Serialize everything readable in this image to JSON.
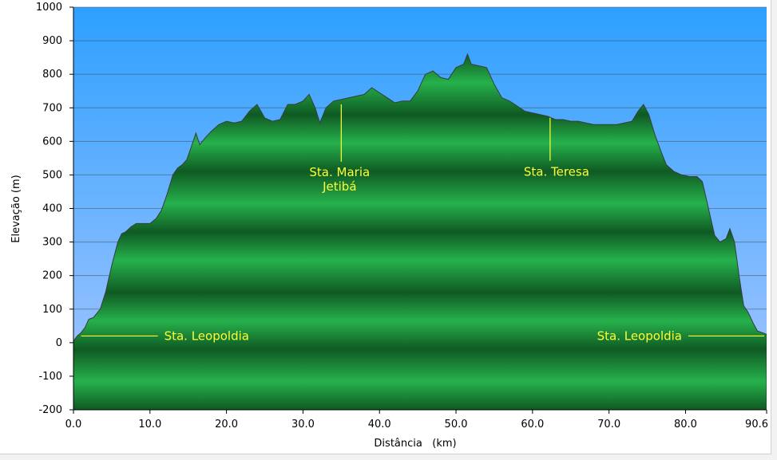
{
  "chart_data": {
    "type": "area",
    "title": "",
    "xlabel": "Distância   (km)",
    "ylabel": "Elevação (m)",
    "xlim": [
      0,
      90.6
    ],
    "ylim": [
      -200,
      1000
    ],
    "x_ticks": [
      "0.0",
      "10.0",
      "20.0",
      "30.0",
      "40.0",
      "50.0",
      "60.0",
      "70.0",
      "80.0",
      "90.6"
    ],
    "x_tick_values": [
      0,
      10,
      20,
      30,
      40,
      50,
      60,
      70,
      80,
      90.6
    ],
    "y_ticks": [
      "1000",
      "900",
      "800",
      "700",
      "600",
      "500",
      "400",
      "300",
      "200",
      "100",
      "0",
      "-100",
      "-200"
    ],
    "y_tick_values": [
      1000,
      900,
      800,
      700,
      600,
      500,
      400,
      300,
      200,
      100,
      0,
      -100,
      -200
    ],
    "grid": true,
    "colors": {
      "sky_top": "#2ea0ff",
      "sky_bottom": "#a9c7ff",
      "terrain_light": "#26b14c",
      "terrain_dark": "#0f5a23",
      "label": "#ffff33"
    },
    "series": [
      {
        "x": [
          0,
          0.5,
          1.0,
          1.5,
          2.0,
          2.6,
          3.5,
          4.2,
          5.0,
          5.8,
          6.3,
          6.8,
          7.5,
          8.2,
          9.0,
          10.0,
          10.8,
          11.5,
          12.2,
          13.0,
          13.6,
          14.2,
          14.8,
          15.5,
          16.0,
          16.5,
          17.2,
          18.0,
          19.0,
          20.0,
          21.0,
          22.0,
          23.0,
          24.0,
          25.0,
          26.0,
          27.0,
          28.0,
          29.0,
          30.0,
          30.8,
          31.6,
          32.2,
          33.0,
          34.0,
          35.0,
          36.0,
          37.0,
          38.0,
          39.0,
          40.0,
          41.0,
          42.0,
          43.0,
          44.0,
          45.0,
          46.0,
          47.0,
          48.0,
          49.0,
          50.0,
          51.0,
          51.5,
          52.0,
          53.0,
          54.0,
          55.0,
          56.0,
          57.0,
          58.0,
          59.0,
          60.0,
          61.0,
          62.0,
          63.0,
          64.0,
          65.0,
          66.0,
          67.0,
          68.0,
          69.0,
          70.0,
          71.0,
          72.0,
          73.0,
          73.8,
          74.5,
          75.2,
          76.0,
          76.8,
          77.5,
          78.5,
          79.5,
          80.5,
          81.5,
          82.2,
          83.0,
          83.8,
          84.5,
          85.3,
          85.8,
          86.4,
          87.0,
          87.6,
          88.2,
          88.8,
          89.4,
          90.0,
          90.6
        ],
        "y": [
          5,
          20,
          30,
          45,
          70,
          75,
          100,
          150,
          230,
          300,
          325,
          330,
          345,
          355,
          355,
          355,
          370,
          395,
          440,
          500,
          520,
          530,
          545,
          590,
          625,
          590,
          610,
          630,
          650,
          660,
          655,
          660,
          690,
          710,
          670,
          660,
          665,
          710,
          710,
          720,
          740,
          700,
          655,
          700,
          720,
          725,
          730,
          735,
          740,
          760,
          745,
          730,
          715,
          720,
          720,
          750,
          800,
          810,
          790,
          785,
          820,
          830,
          860,
          830,
          825,
          820,
          770,
          730,
          720,
          705,
          690,
          685,
          680,
          675,
          665,
          665,
          660,
          660,
          655,
          650,
          650,
          650,
          650,
          655,
          660,
          690,
          710,
          680,
          620,
          570,
          530,
          510,
          500,
          495,
          495,
          480,
          400,
          320,
          300,
          310,
          340,
          300,
          200,
          110,
          90,
          60,
          35,
          30,
          25
        ]
      }
    ],
    "annotations": [
      {
        "id": "sta-leopoldia-start",
        "text": "Sta. Leopoldia",
        "x": 1,
        "y": 20
      },
      {
        "id": "sta-maria-jetiba",
        "lines": [
          "Sta. Maria",
          "Jetibá"
        ],
        "x": 35,
        "y": 720
      },
      {
        "id": "sta-teresa",
        "text": "Sta. Teresa",
        "x": 62.3,
        "y": 680
      },
      {
        "id": "sta-leopoldia-end",
        "text": "Sta. Leopoldia",
        "x": 90.6,
        "y": 20
      }
    ]
  }
}
